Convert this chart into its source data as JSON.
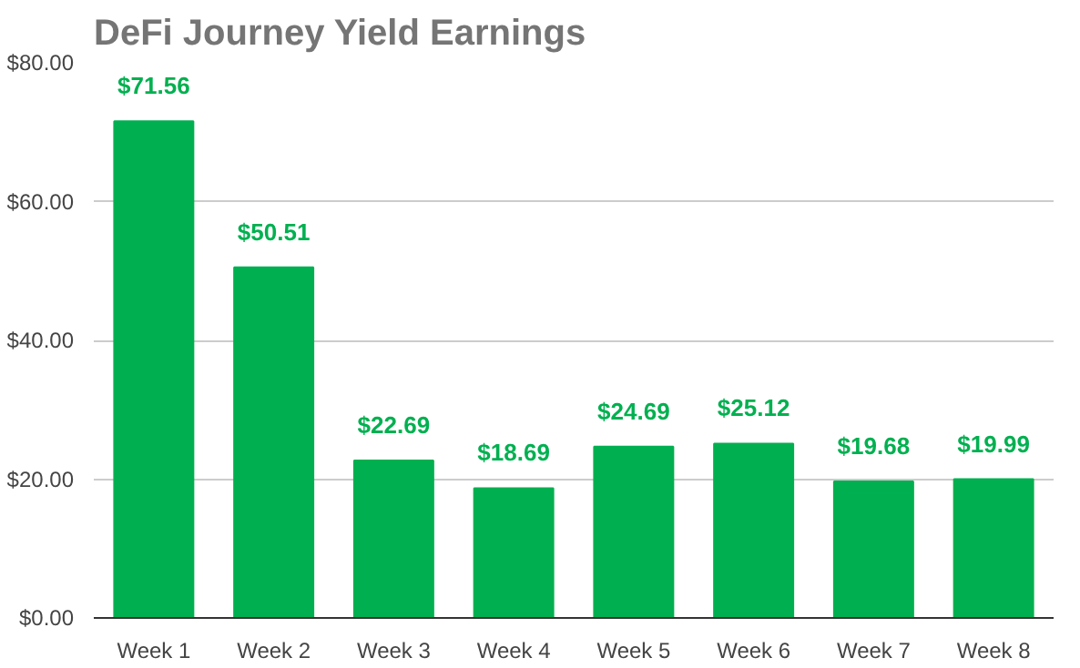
{
  "chart_data": {
    "type": "bar",
    "title": "DeFi Journey Yield Earnings",
    "categories": [
      "Week 1",
      "Week 2",
      "Week 3",
      "Week 4",
      "Week 5",
      "Week 6",
      "Week 7",
      "Week 8"
    ],
    "values": [
      71.56,
      50.51,
      22.69,
      18.69,
      24.69,
      25.12,
      19.68,
      19.99
    ],
    "color": "#00b050",
    "value_labels": [
      "$71.56",
      "$50.51",
      "$22.69",
      "$18.69",
      "$24.69",
      "$25.12",
      "$19.68",
      "$19.99"
    ],
    "ylim": [
      0,
      80
    ],
    "yticks": [
      {
        "value": 0,
        "label": "$0.00"
      },
      {
        "value": 20,
        "label": "$20.00"
      },
      {
        "value": 40,
        "label": "$40.00"
      },
      {
        "value": 60,
        "label": "$60.00"
      },
      {
        "value": 80,
        "label": "$80.00"
      }
    ],
    "grid": "y"
  }
}
